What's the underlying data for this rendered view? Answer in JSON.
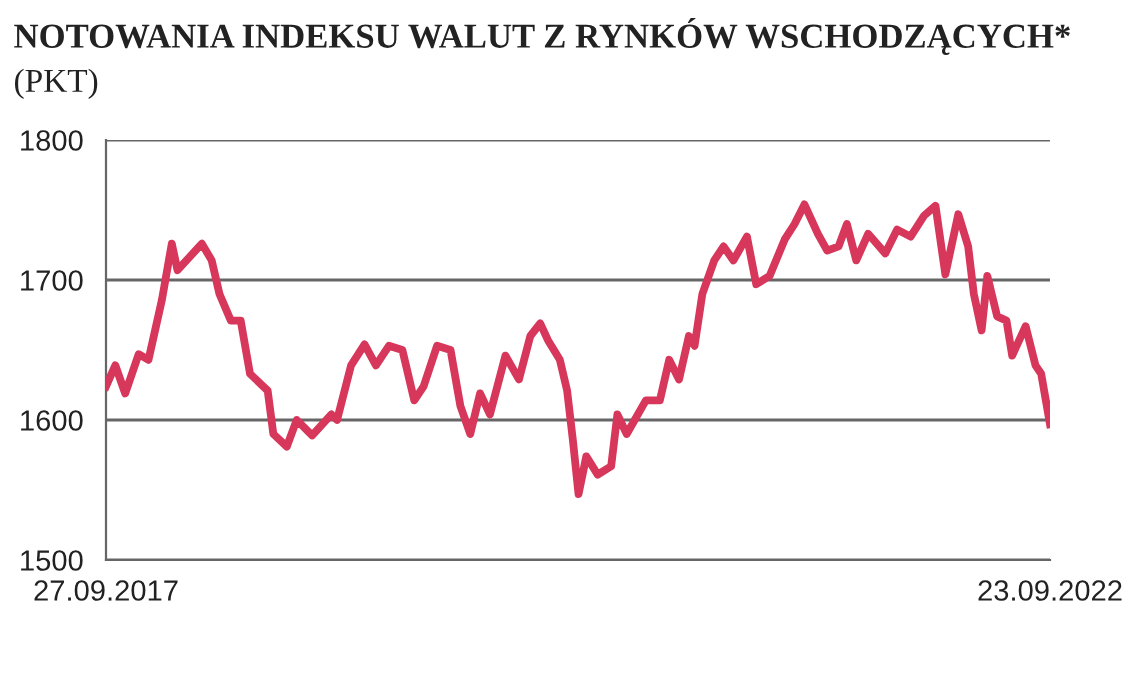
{
  "chart_data": {
    "type": "line",
    "title": "NOTOWANIA INDEKSU WALUT Z RYNKÓW WSCHODZĄCYCH*",
    "subtitle": "(PKT)",
    "x": [
      "2017-09-27",
      "2017-10-15",
      "2017-11-03",
      "2017-11-29",
      "2017-12-18",
      "2018-01-13",
      "2018-02-01",
      "2018-02-12",
      "2018-03-31",
      "2018-04-19",
      "2018-05-04",
      "2018-05-26",
      "2018-06-14",
      "2018-07-02",
      "2018-08-05",
      "2018-08-16",
      "2018-09-11",
      "2018-09-30",
      "2018-10-30",
      "2018-12-06",
      "2018-12-17",
      "2019-01-13",
      "2019-02-08",
      "2019-03-02",
      "2019-03-27",
      "2019-04-22",
      "2019-05-15",
      "2019-06-02",
      "2019-06-28",
      "2019-07-24",
      "2019-08-12",
      "2019-08-31",
      "2019-09-19",
      "2019-10-08",
      "2019-11-07",
      "2019-12-03",
      "2019-12-25",
      "2020-01-13",
      "2020-01-28",
      "2020-02-20",
      "2020-03-05",
      "2020-03-16",
      "2020-03-27",
      "2020-04-11",
      "2020-05-03",
      "2020-05-29",
      "2020-06-10",
      "2020-06-28",
      "2020-08-04",
      "2020-08-31",
      "2020-09-18",
      "2020-10-07",
      "2020-10-26",
      "2020-11-06",
      "2020-11-21",
      "2020-12-14",
      "2021-01-01",
      "2021-01-20",
      "2021-02-15",
      "2021-03-05",
      "2021-03-31",
      "2021-04-29",
      "2021-05-18",
      "2021-06-06",
      "2021-07-02",
      "2021-07-20",
      "2021-08-11",
      "2021-08-27",
      "2021-09-14",
      "2021-10-07",
      "2021-11-09",
      "2021-12-02",
      "2021-12-28",
      "2022-01-23",
      "2022-02-14",
      "2022-03-05",
      "2022-03-30",
      "2022-04-18",
      "2022-04-29",
      "2022-05-14",
      "2022-05-25",
      "2022-06-13",
      "2022-07-01",
      "2022-07-12",
      "2022-08-07",
      "2022-08-26",
      "2022-09-06",
      "2022-09-23"
    ],
    "series": [
      {
        "color": "#d6375a",
        "values": [
          1624,
          1639,
          1619,
          1647,
          1643,
          1686,
          1726,
          1707,
          1726,
          1714,
          1690,
          1671,
          1671,
          1633,
          1621,
          1590,
          1581,
          1600,
          1589,
          1604,
          1600,
          1639,
          1654,
          1639,
          1653,
          1650,
          1614,
          1624,
          1653,
          1650,
          1610,
          1590,
          1619,
          1604,
          1646,
          1629,
          1660,
          1669,
          1657,
          1643,
          1621,
          1586,
          1547,
          1574,
          1561,
          1567,
          1604,
          1590,
          1614,
          1614,
          1643,
          1629,
          1660,
          1653,
          1690,
          1714,
          1724,
          1714,
          1731,
          1697,
          1703,
          1729,
          1740,
          1754,
          1733,
          1721,
          1724,
          1740,
          1714,
          1733,
          1719,
          1736,
          1731,
          1746,
          1753,
          1704,
          1747,
          1724,
          1690,
          1664,
          1703,
          1674,
          1671,
          1646,
          1667,
          1639,
          1633,
          1597
        ]
      }
    ],
    "xlim": [
      "2017-09-27",
      "2022-09-23"
    ],
    "xticks": [
      {
        "value": "2017-09-27",
        "label": "27.09.2017"
      },
      {
        "value": "2022-09-23",
        "label": "23.09.2022"
      }
    ],
    "ylim": [
      1500,
      1800
    ],
    "yticks": [
      1500,
      1600,
      1700,
      1800
    ],
    "grid": "y",
    "line_style": "solid"
  }
}
